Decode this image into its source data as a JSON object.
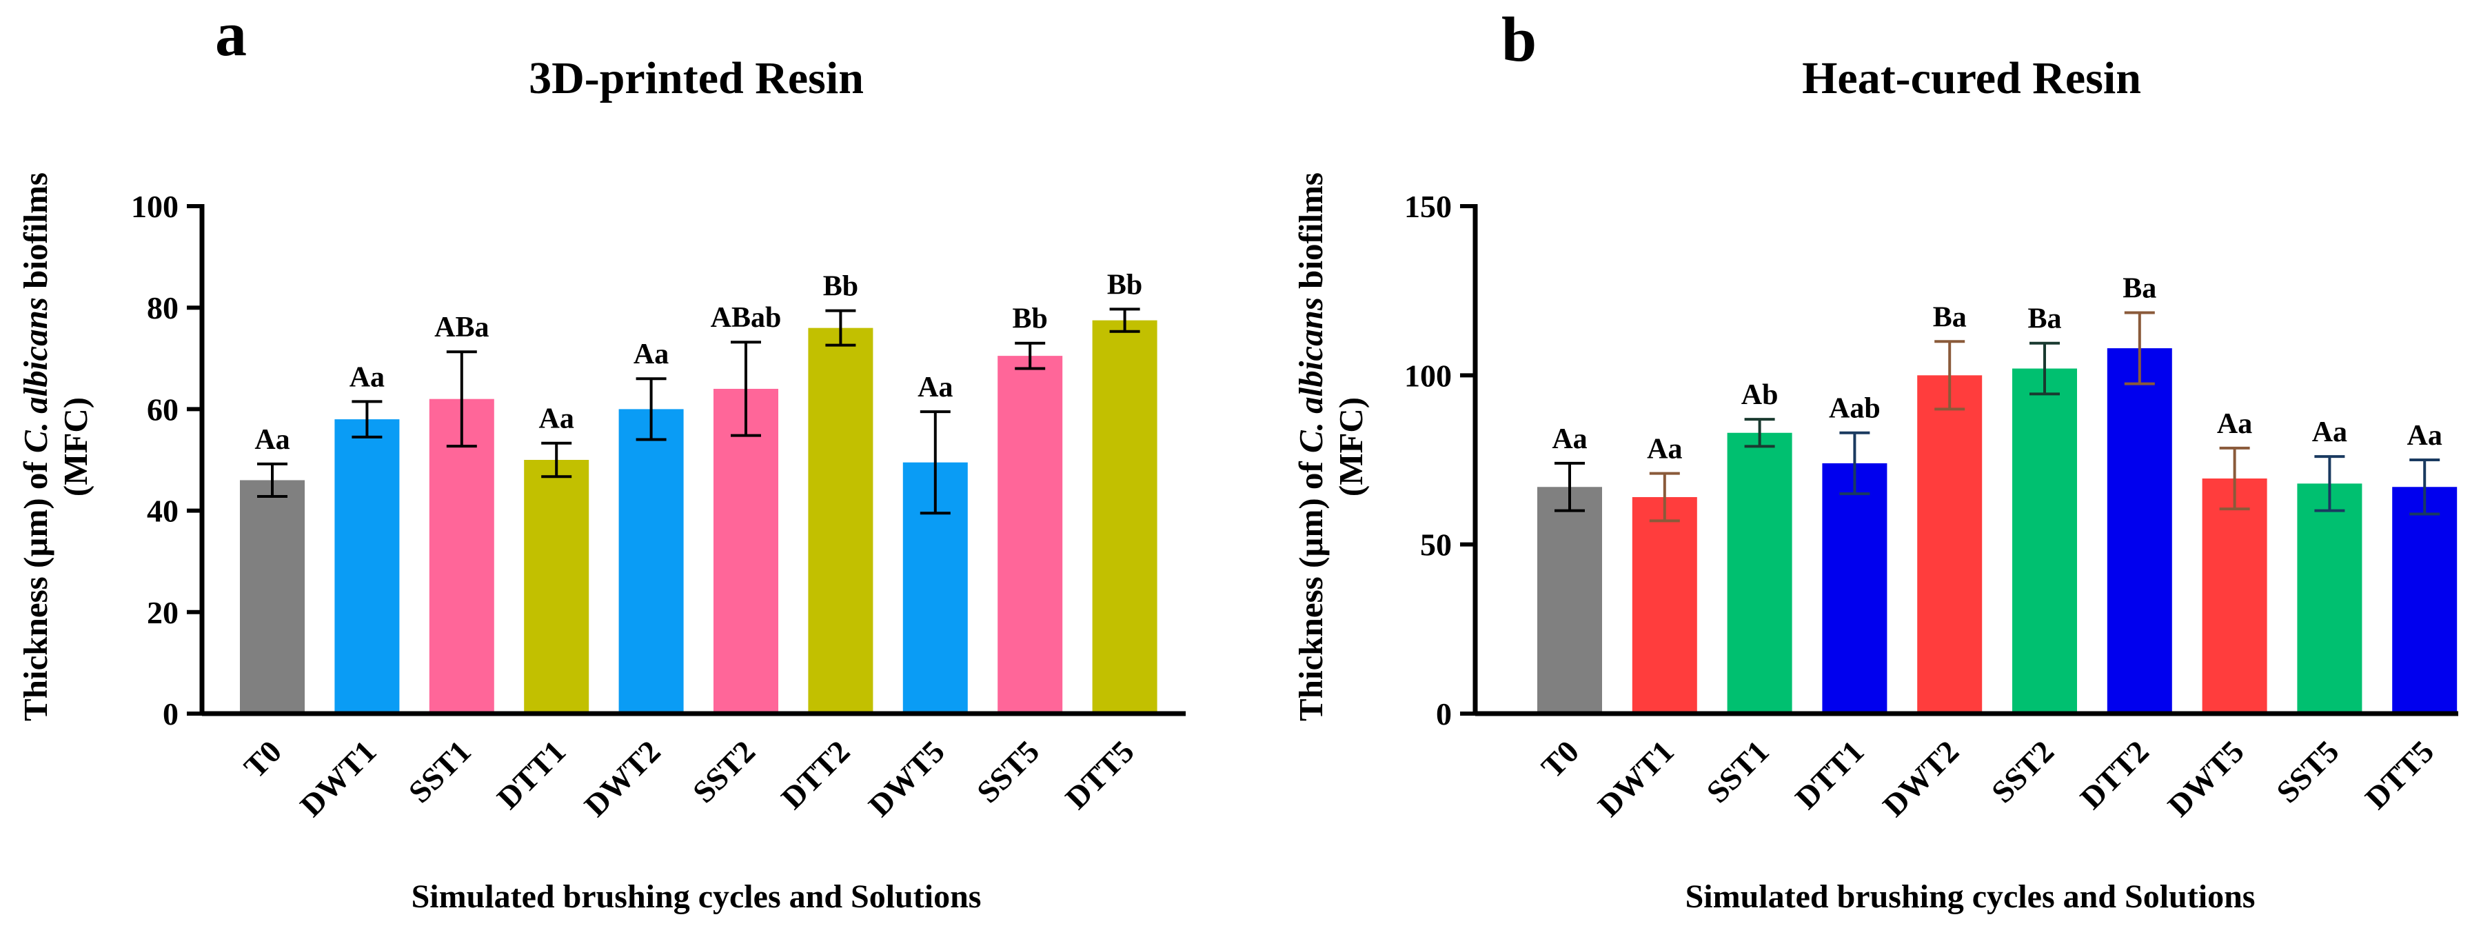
{
  "chart_data": [
    {
      "type": "bar",
      "panel_letter": "a",
      "title": "3D-printed Resin",
      "xlabel": "Simulated brushing cycles and Solutions",
      "ylabel_line1_pre": "Thickness (µm) of ",
      "ylabel_line1_italic": "C. albicans",
      "ylabel_line1_post": " biofilms",
      "ylabel_line2": "(MFC)",
      "ylim": [
        0,
        100
      ],
      "yticks": [
        "0",
        "20",
        "40",
        "60",
        "80",
        "100"
      ],
      "categories": [
        "T0",
        "DWT1",
        "SST1",
        "DTT1",
        "DWT2",
        "SST2",
        "DTT2",
        "DWT5",
        "SST5",
        "DTT5"
      ],
      "values": [
        46,
        58,
        62,
        50,
        60,
        64,
        76,
        49.5,
        70.5,
        77.5
      ],
      "errors": [
        3.2,
        3.5,
        9.3,
        3.3,
        6,
        9.2,
        3.4,
        10,
        2.5,
        2.2
      ],
      "significance": [
        "Aa",
        "Aa",
        "ABa",
        "Aa",
        "Aa",
        "ABab",
        "Bb",
        "Aa",
        "Bb",
        "Bb"
      ],
      "colors": [
        "#808080",
        "#0a9cf5",
        "#ff6699",
        "#c2c000",
        "#0a9cf5",
        "#ff6699",
        "#c2c000",
        "#0a9cf5",
        "#ff6699",
        "#c2c000"
      ],
      "error_bar_colors": [
        "#000000",
        "#000000",
        "#000000",
        "#000000",
        "#000000",
        "#000000",
        "#000000",
        "#000000",
        "#000000",
        "#000000"
      ]
    },
    {
      "type": "bar",
      "panel_letter": "b",
      "title": "Heat-cured Resin",
      "xlabel": "Simulated brushing cycles and Solutions",
      "ylabel_line1_pre": "Thickness (µm) of ",
      "ylabel_line1_italic": "C. albicans",
      "ylabel_line1_post": " biofilms",
      "ylabel_line2": "(MFC)",
      "ylim": [
        0,
        150
      ],
      "yticks": [
        "0",
        "50",
        "100",
        "150"
      ],
      "categories": [
        "T0",
        "DWT1",
        "SST1",
        "DTT1",
        "DWT2",
        "SST2",
        "DTT2",
        "DWT5",
        "SST5",
        "DTT5"
      ],
      "values": [
        67,
        64,
        83,
        74,
        100,
        102,
        108,
        69.5,
        68,
        67
      ],
      "errors": [
        7,
        7,
        4,
        9,
        10,
        7.5,
        10.5,
        9,
        8,
        8
      ],
      "significance": [
        "Aa",
        "Aa",
        "Ab",
        "Aab",
        "Ba",
        "Ba",
        "Ba",
        "Aa",
        "Aa",
        "Aa"
      ],
      "colors": [
        "#808080",
        "#ff3d3d",
        "#00c070",
        "#0000ee",
        "#ff3d3d",
        "#00c070",
        "#0000ee",
        "#ff3d3d",
        "#00c070",
        "#0000ee"
      ],
      "error_bar_colors": [
        "#000000",
        "#8a5a3a",
        "#1a3a30",
        "#1a3a60",
        "#8a5a3a",
        "#1a3a30",
        "#8a5a3a",
        "#8a5a3a",
        "#1a3a60",
        "#1a3a60"
      ]
    }
  ]
}
